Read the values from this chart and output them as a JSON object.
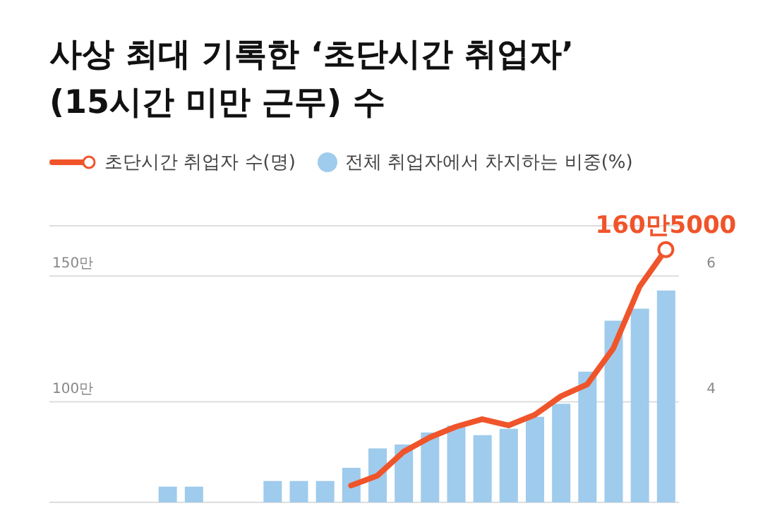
{
  "chart_data": {
    "type": "bar",
    "title": "사상 최대 기록한 ‘초단시간 취업자’\n(15시간 미만 근무) 수",
    "categories": [
      null,
      null,
      null,
      null,
      null,
      null,
      null,
      null,
      null,
      null,
      null,
      null,
      null,
      null,
      null,
      null,
      null,
      null,
      null,
      null,
      null,
      null,
      null,
      null
    ],
    "series": [
      {
        "name": "초단시간 취업자 수(명)",
        "type": "line",
        "color": "#f0542a",
        "values": [
          null,
          null,
          null,
          null,
          null,
          null,
          null,
          null,
          null,
          null,
          null,
          66.7,
          70.6,
          80.1,
          85.8,
          90.1,
          93.1,
          90.6,
          94.8,
          102.2,
          106.9,
          121.3,
          145.8,
          160.5
        ]
      },
      {
        "name": "전체 취업자에서 차지하는 비중(%)",
        "axis": "y2",
        "color": "#9fcbec",
        "values": [
          null,
          null,
          null,
          null,
          2.65,
          2.65,
          null,
          null,
          2.74,
          2.74,
          2.74,
          2.95,
          3.26,
          3.32,
          3.51,
          3.62,
          3.47,
          3.57,
          3.76,
          3.97,
          4.48,
          5.29,
          5.48,
          5.77
        ]
      }
    ],
    "annotations": [
      {
        "text": "160만5000",
        "y": 160.5
      }
    ],
    "ylim": [
      60,
      170
    ],
    "yticks": [
      {
        "value": 150,
        "label": "150만"
      },
      {
        "value": 100,
        "label": "100만"
      }
    ],
    "y2lim": [
      2.4,
      6.8
    ],
    "y2ticks": [
      6,
      4
    ],
    "grid": "y",
    "legend": "top left",
    "marker": "none",
    "line_style": "solid"
  }
}
